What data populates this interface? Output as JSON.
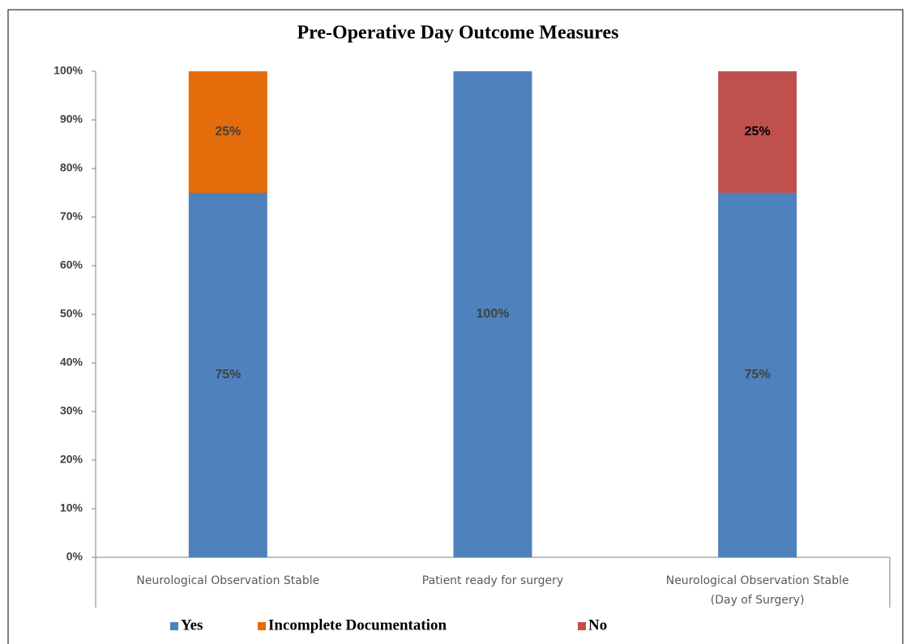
{
  "chart_data": {
    "type": "stacked_bar",
    "title": "Pre-Operative Day Outcome Measures",
    "categories": [
      "Neurological Observation Stable",
      "Patient ready for surgery",
      "Neurological Observation Stable (Day of Surgery)"
    ],
    "series": [
      {
        "name": "Yes",
        "color": "#4f81bd",
        "label_color": "#404040",
        "values": [
          75,
          100,
          75
        ],
        "value_labels": [
          "75%",
          "100%",
          "75%"
        ]
      },
      {
        "name": "Incomplete Documentation",
        "color": "#e46c0a",
        "label_color": "#404040",
        "values": [
          25,
          null,
          null
        ],
        "value_labels": [
          "25%",
          null,
          null
        ]
      },
      {
        "name": "No",
        "color": "#c0504d",
        "label_color": "#000000",
        "values": [
          null,
          null,
          25
        ],
        "value_labels": [
          null,
          null,
          "25%"
        ]
      }
    ],
    "ylim": [
      0,
      100
    ],
    "yticks": [
      {
        "value": 0,
        "label": "0%"
      },
      {
        "value": 10,
        "label": "10%"
      },
      {
        "value": 20,
        "label": "20%"
      },
      {
        "value": 30,
        "label": "30%"
      },
      {
        "value": 40,
        "label": "40%"
      },
      {
        "value": 50,
        "label": "50%"
      },
      {
        "value": 60,
        "label": "60%"
      },
      {
        "value": 70,
        "label": "70%"
      },
      {
        "value": 80,
        "label": "80%"
      },
      {
        "value": 90,
        "label": "90%"
      },
      {
        "value": 100,
        "label": "100%"
      }
    ],
    "legend": "bottom"
  }
}
